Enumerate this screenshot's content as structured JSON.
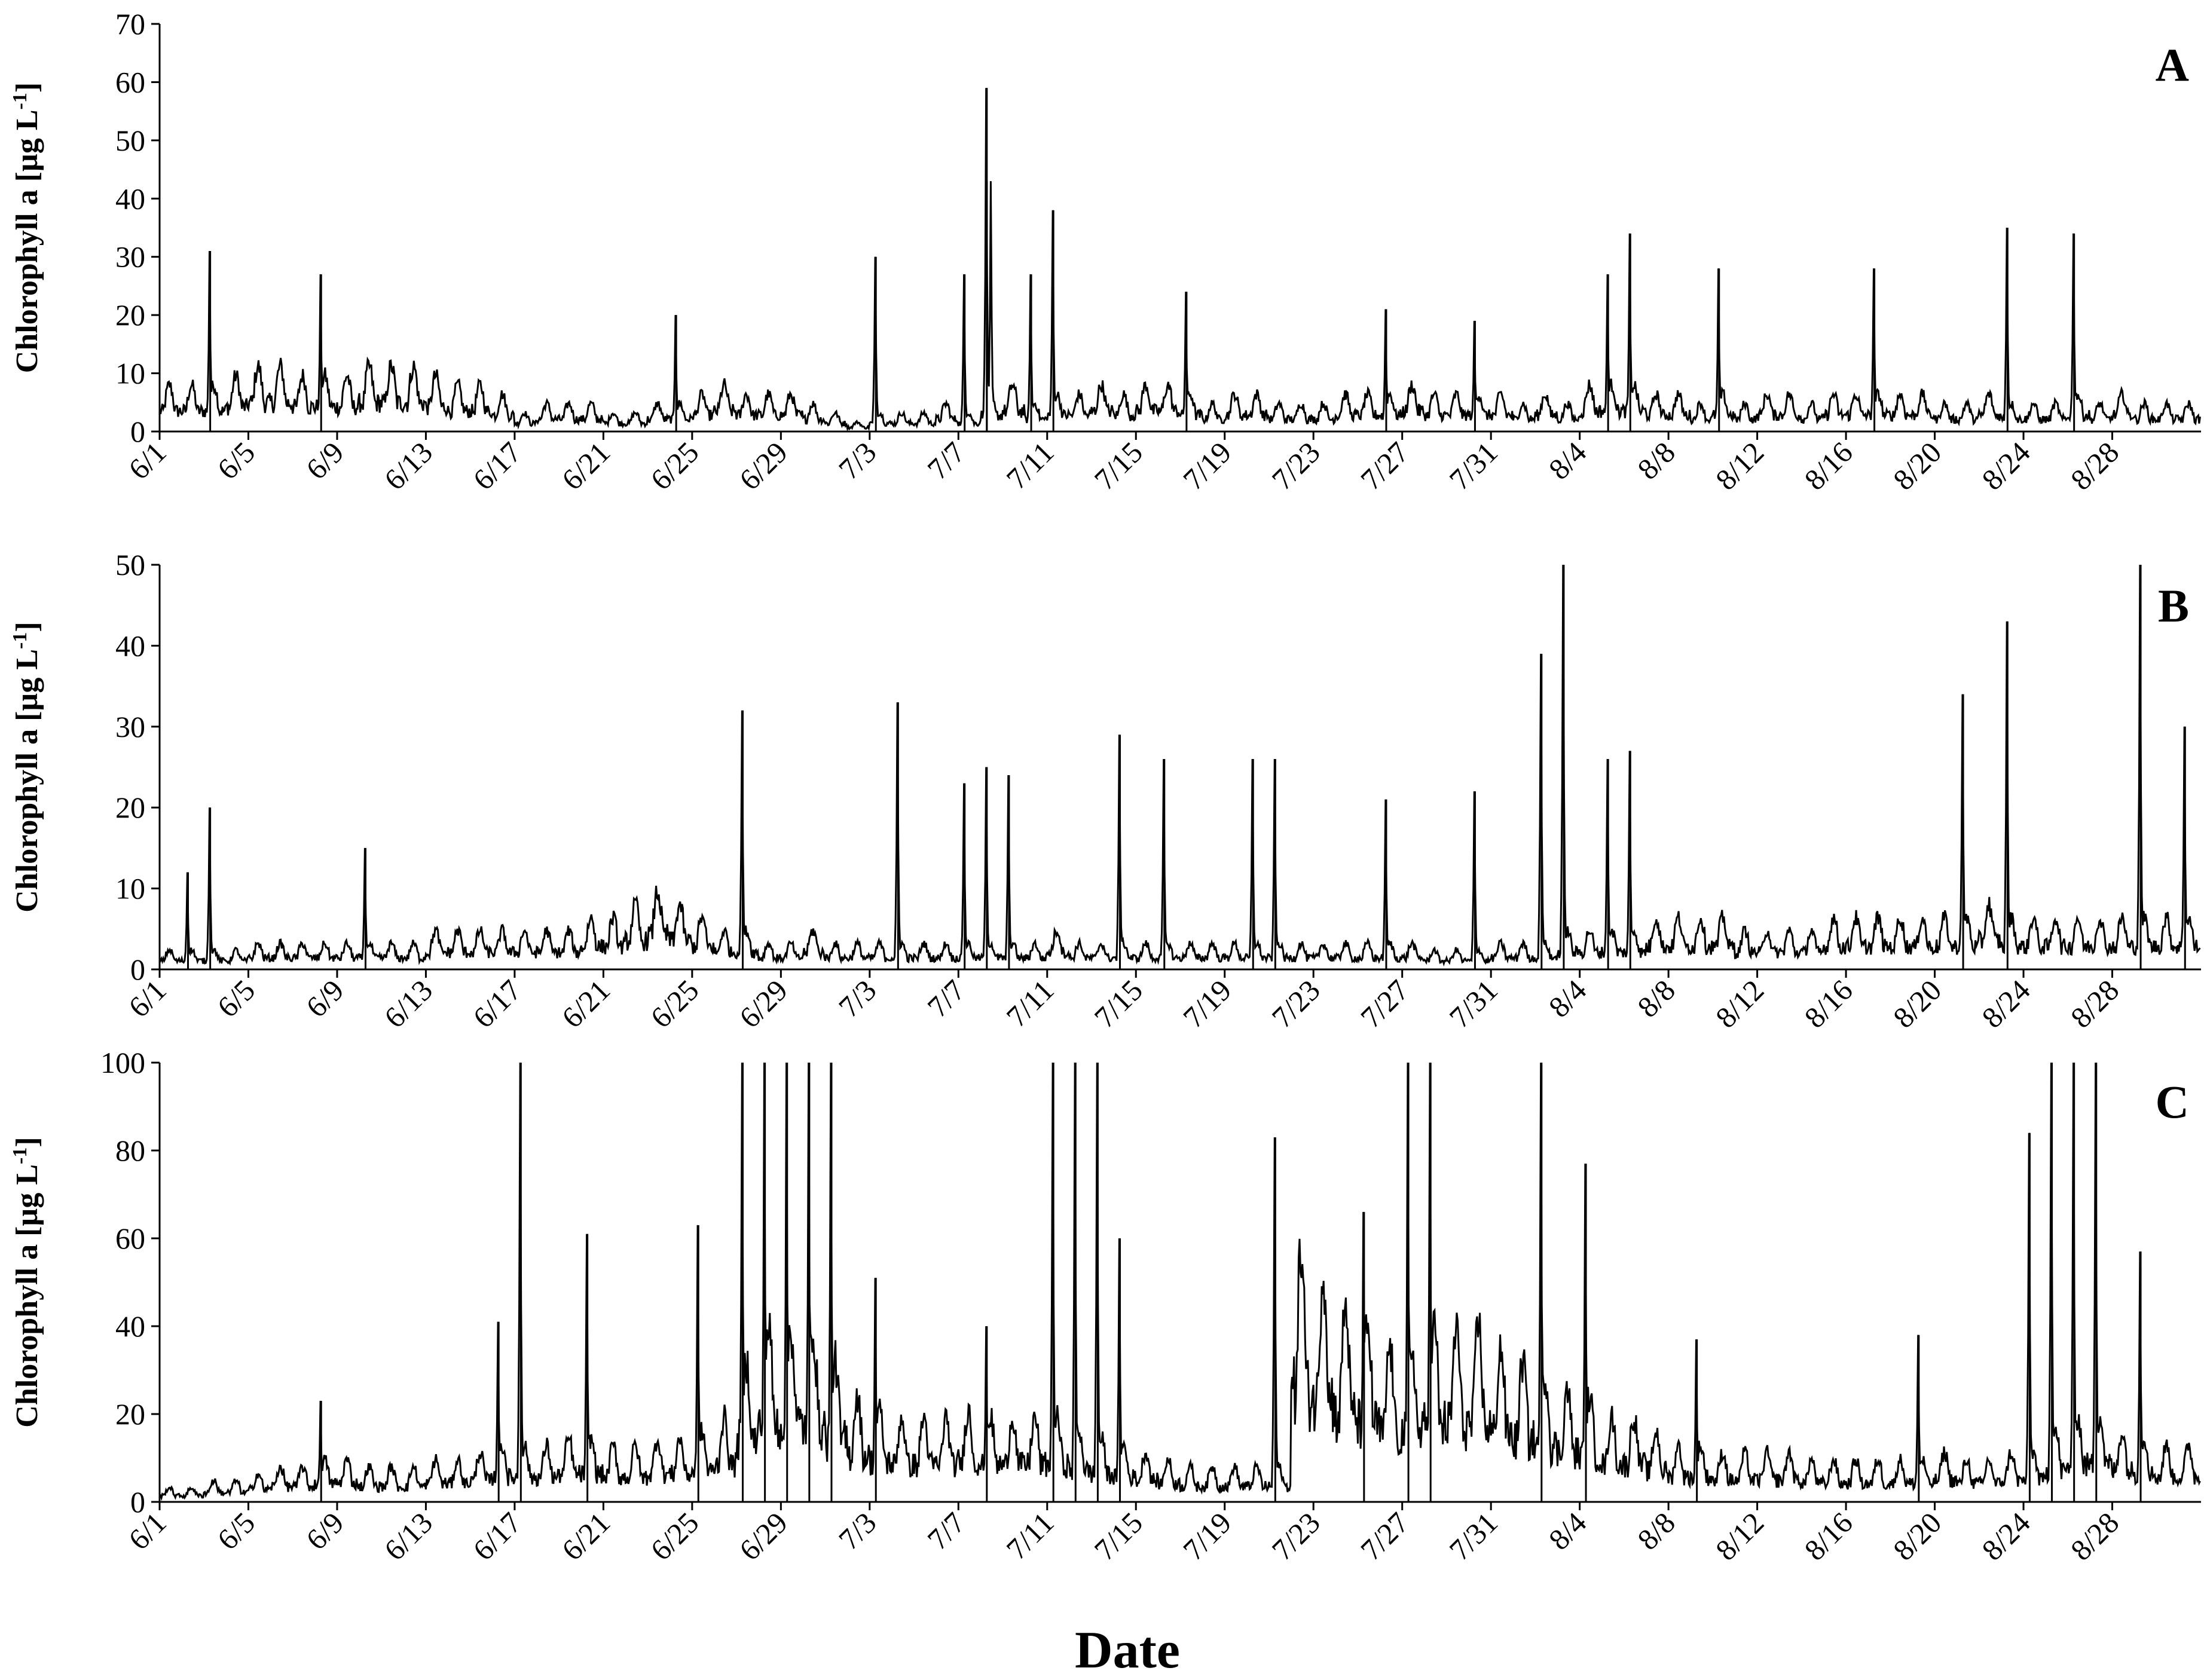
{
  "x_title": "Date",
  "chart_data": [
    {
      "type": "line",
      "panel": "A",
      "ylabel": "Chlorophyll a [µg L-1]",
      "ylabel_main": "Chlorophyll a [µg L",
      "ylabel_sup": "-1",
      "ylabel_close": "]",
      "ylim": [
        0,
        70
      ],
      "y_ticks": [
        0,
        10,
        20,
        30,
        40,
        50,
        60,
        70
      ],
      "x_tick_labels": [
        "6/1",
        "6/5",
        "6/9",
        "6/13",
        "6/17",
        "6/21",
        "6/25",
        "6/29",
        "7/3",
        "7/7",
        "7/11",
        "7/15",
        "7/19",
        "7/23",
        "7/27",
        "7/31",
        "8/4",
        "8/8",
        "8/12",
        "8/16",
        "8/20",
        "8/24",
        "8/28"
      ],
      "x_start": "6/1",
      "x_end": "8/31",
      "baseline": [
        5,
        5,
        5,
        6,
        7,
        7,
        6,
        6,
        6,
        7,
        7,
        7,
        6,
        5,
        5,
        4,
        2,
        3,
        3,
        3,
        2,
        2,
        3,
        3,
        4,
        5,
        4,
        4,
        4,
        3,
        2,
        1,
        2,
        2,
        2,
        3,
        2,
        4,
        5,
        3,
        4,
        4,
        5,
        4,
        5,
        5,
        4,
        3,
        4,
        4,
        3,
        3,
        3,
        4,
        4,
        4,
        5,
        4,
        4,
        4,
        4,
        3,
        4,
        3,
        5,
        5,
        5,
        4,
        4,
        3,
        4,
        3,
        4,
        4,
        3,
        4,
        4,
        4,
        4,
        4,
        3,
        3,
        4,
        3,
        3,
        3,
        4,
        3,
        4,
        3,
        3
      ],
      "spikes": [
        {
          "date": "6/3",
          "value": 31
        },
        {
          "date": "6/8",
          "value": 27
        },
        {
          "date": "6/24",
          "value": 20
        },
        {
          "date": "7/3",
          "value": 30
        },
        {
          "date": "7/7",
          "value": 27
        },
        {
          "date": "7/8",
          "value": 59
        },
        {
          "date": "7/8",
          "value": 43
        },
        {
          "date": "7/10",
          "value": 27
        },
        {
          "date": "7/11",
          "value": 38
        },
        {
          "date": "7/17",
          "value": 24
        },
        {
          "date": "7/26",
          "value": 21
        },
        {
          "date": "7/30",
          "value": 19
        },
        {
          "date": "8/5",
          "value": 27
        },
        {
          "date": "8/6",
          "value": 34
        },
        {
          "date": "8/10",
          "value": 28
        },
        {
          "date": "8/17",
          "value": 28
        },
        {
          "date": "8/23",
          "value": 35
        },
        {
          "date": "8/26",
          "value": 34
        }
      ]
    },
    {
      "type": "line",
      "panel": "B",
      "ylabel": "Chlorophyll a [µg L-1]",
      "ylabel_main": "Chlorophyll a [µg L",
      "ylabel_sup": "-1",
      "ylabel_close": "]",
      "ylim": [
        0,
        50
      ],
      "y_ticks": [
        0,
        10,
        20,
        30,
        40,
        50
      ],
      "x_tick_labels": [
        "6/1",
        "6/5",
        "6/9",
        "6/13",
        "6/17",
        "6/21",
        "6/25",
        "6/29",
        "7/3",
        "7/7",
        "7/11",
        "7/15",
        "7/19",
        "7/23",
        "7/27",
        "7/31",
        "8/4",
        "8/8",
        "8/12",
        "8/16",
        "8/20",
        "8/24",
        "8/28"
      ],
      "x_start": "6/1",
      "x_end": "8/31",
      "baseline": [
        1.5,
        1.5,
        1.5,
        1.5,
        2,
        2,
        2,
        2,
        2,
        2,
        2,
        2,
        3,
        3,
        3,
        3,
        3,
        3,
        3,
        4,
        4,
        5,
        6,
        5,
        4,
        3,
        3,
        2,
        2,
        3,
        2,
        2,
        2,
        2,
        2,
        2,
        2,
        2,
        2,
        2,
        3,
        2,
        2,
        2,
        2,
        2,
        2,
        2,
        2,
        2,
        2,
        2,
        2,
        2,
        2,
        2,
        2,
        1.5,
        1.5,
        1.5,
        2,
        2,
        2,
        3,
        3,
        3,
        3,
        4,
        4,
        4,
        4,
        3,
        3,
        3,
        3,
        4,
        4,
        4,
        4,
        4,
        4,
        4,
        5,
        4,
        4,
        4,
        4,
        4,
        4,
        4,
        4,
        4
      ],
      "spikes": [
        {
          "date": "6/2",
          "value": 12
        },
        {
          "date": "6/3",
          "value": 20
        },
        {
          "date": "6/10",
          "value": 15
        },
        {
          "date": "6/27",
          "value": 32
        },
        {
          "date": "7/4",
          "value": 33
        },
        {
          "date": "7/7",
          "value": 23
        },
        {
          "date": "7/8",
          "value": 25
        },
        {
          "date": "7/9",
          "value": 24
        },
        {
          "date": "7/14",
          "value": 29
        },
        {
          "date": "7/16",
          "value": 26
        },
        {
          "date": "7/20",
          "value": 26
        },
        {
          "date": "7/21",
          "value": 26
        },
        {
          "date": "7/26",
          "value": 21
        },
        {
          "date": "7/30",
          "value": 22
        },
        {
          "date": "8/2",
          "value": 39
        },
        {
          "date": "8/3",
          "value": 50
        },
        {
          "date": "8/5",
          "value": 26
        },
        {
          "date": "8/6",
          "value": 27
        },
        {
          "date": "8/21",
          "value": 34
        },
        {
          "date": "8/23",
          "value": 43
        },
        {
          "date": "8/29",
          "value": 50
        },
        {
          "date": "8/31",
          "value": 30
        }
      ]
    },
    {
      "type": "line",
      "panel": "C",
      "ylabel": "Chlorophyll a [µg L-1]",
      "ylabel_main": "Chlorophyll a [µg L",
      "ylabel_sup": "-1",
      "ylabel_close": "]",
      "ylim": [
        0,
        100
      ],
      "y_ticks": [
        0,
        20,
        40,
        60,
        80,
        100
      ],
      "x_tick_labels": [
        "6/1",
        "6/5",
        "6/9",
        "6/13",
        "6/17",
        "6/21",
        "6/25",
        "6/29",
        "7/3",
        "7/7",
        "7/11",
        "7/15",
        "7/19",
        "7/23",
        "7/27",
        "7/31",
        "8/4",
        "8/8",
        "8/12",
        "8/16",
        "8/20",
        "8/24",
        "8/28"
      ],
      "x_start": "6/1",
      "x_end": "8/31",
      "baseline": [
        2,
        2,
        3,
        3,
        4,
        5,
        5,
        6,
        6,
        5,
        5,
        5,
        6,
        6,
        7,
        8,
        8,
        8,
        9,
        9,
        8,
        8,
        9,
        9,
        10,
        12,
        20,
        25,
        25,
        25,
        20,
        15,
        13,
        12,
        12,
        12,
        13,
        12,
        12,
        12,
        12,
        10,
        9,
        8,
        7,
        6,
        5,
        5,
        5,
        5,
        5,
        35,
        33,
        28,
        25,
        22,
        22,
        25,
        25,
        25,
        22,
        20,
        18,
        16,
        15,
        12,
        12,
        10,
        8,
        8,
        7,
        7,
        7,
        7,
        6,
        6,
        6,
        6,
        6,
        6,
        7,
        6,
        6,
        7,
        7,
        10,
        12,
        12,
        10,
        9,
        8,
        8
      ],
      "spikes": [
        {
          "date": "6/8",
          "value": 23
        },
        {
          "date": "6/16",
          "value": 41
        },
        {
          "date": "6/17",
          "value": 100
        },
        {
          "date": "6/20",
          "value": 61
        },
        {
          "date": "6/25",
          "value": 63
        },
        {
          "date": "6/27",
          "value": 100
        },
        {
          "date": "6/28",
          "value": 100
        },
        {
          "date": "6/29",
          "value": 100
        },
        {
          "date": "6/30",
          "value": 100
        },
        {
          "date": "7/1",
          "value": 100
        },
        {
          "date": "7/3",
          "value": 51
        },
        {
          "date": "7/8",
          "value": 40
        },
        {
          "date": "7/11",
          "value": 100
        },
        {
          "date": "7/12",
          "value": 100
        },
        {
          "date": "7/13",
          "value": 100
        },
        {
          "date": "7/14",
          "value": 60
        },
        {
          "date": "7/21",
          "value": 83
        },
        {
          "date": "7/25",
          "value": 66
        },
        {
          "date": "7/27",
          "value": 100
        },
        {
          "date": "7/28",
          "value": 100
        },
        {
          "date": "8/2",
          "value": 100
        },
        {
          "date": "8/4",
          "value": 77
        },
        {
          "date": "8/9",
          "value": 37
        },
        {
          "date": "8/19",
          "value": 38
        },
        {
          "date": "8/24",
          "value": 84
        },
        {
          "date": "8/25",
          "value": 100
        },
        {
          "date": "8/26",
          "value": 100
        },
        {
          "date": "8/27",
          "value": 100
        },
        {
          "date": "8/29",
          "value": 57
        }
      ]
    }
  ]
}
